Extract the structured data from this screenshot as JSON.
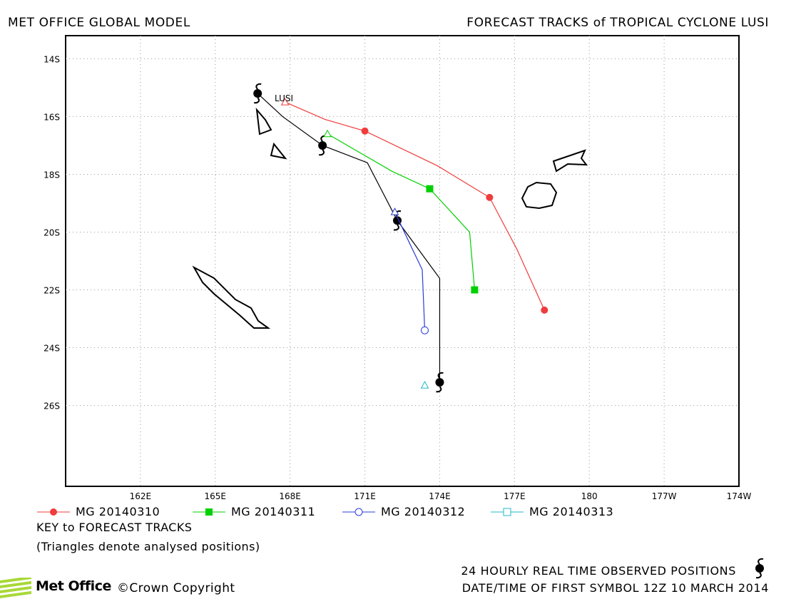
{
  "header": {
    "left": "MET OFFICE GLOBAL MODEL",
    "right": "FORECAST TRACKS of TROPICAL CYCLONE LUSI"
  },
  "map": {
    "lat_labels": [
      "14S",
      "16S",
      "18S",
      "20S",
      "22S",
      "24S",
      "26S"
    ],
    "lon_labels": [
      "162E",
      "165E",
      "168E",
      "171E",
      "174E",
      "177E",
      "180",
      "177W",
      "174W"
    ],
    "storm_label": "LUSI",
    "grid": "dotted"
  },
  "chart_data": {
    "type": "map-tracks",
    "lon_range": [
      159,
      186
    ],
    "lat_range": [
      -28.8,
      -13.2
    ],
    "observed_positions": [
      {
        "lon": 166.7,
        "lat": -15.2
      },
      {
        "lon": 169.3,
        "lat": -17.0
      },
      {
        "lon": 172.3,
        "lat": -19.6
      },
      {
        "lon": 174.0,
        "lat": -25.2
      }
    ],
    "observed_track": [
      {
        "lon": 166.7,
        "lat": -15.2
      },
      {
        "lon": 167.7,
        "lat": -16.0
      },
      {
        "lon": 169.3,
        "lat": -17.0
      },
      {
        "lon": 171.1,
        "lat": -17.6
      },
      {
        "lon": 172.3,
        "lat": -19.6
      },
      {
        "lon": 174.0,
        "lat": -21.6
      },
      {
        "lon": 174.0,
        "lat": -25.2
      }
    ],
    "series": [
      {
        "name": "MG 20140310",
        "color": "#f03c3c",
        "marker": "circle-filled",
        "analysed": {
          "lon": 167.8,
          "lat": -15.5
        },
        "track": [
          {
            "lon": 167.8,
            "lat": -15.5
          },
          {
            "lon": 169.4,
            "lat": -16.1
          },
          {
            "lon": 171.0,
            "lat": -16.5
          },
          {
            "lon": 173.9,
            "lat": -17.7
          },
          {
            "lon": 176.0,
            "lat": -18.8
          },
          {
            "lon": 177.1,
            "lat": -20.6
          },
          {
            "lon": 178.2,
            "lat": -22.7
          }
        ],
        "points": [
          {
            "lon": 171.0,
            "lat": -16.5
          },
          {
            "lon": 176.0,
            "lat": -18.8
          },
          {
            "lon": 178.2,
            "lat": -22.7
          }
        ]
      },
      {
        "name": "MG 20140311",
        "color": "#00d000",
        "marker": "square-filled",
        "analysed": {
          "lon": 169.5,
          "lat": -16.6
        },
        "track": [
          {
            "lon": 169.5,
            "lat": -16.6
          },
          {
            "lon": 172.1,
            "lat": -17.9
          },
          {
            "lon": 173.6,
            "lat": -18.5
          },
          {
            "lon": 175.2,
            "lat": -20.0
          },
          {
            "lon": 175.4,
            "lat": -22.0
          }
        ],
        "points": [
          {
            "lon": 173.6,
            "lat": -18.5
          },
          {
            "lon": 175.4,
            "lat": -22.0
          }
        ]
      },
      {
        "name": "MG 20140312",
        "color": "#2a3cd8",
        "marker": "circle-open",
        "analysed": {
          "lon": 172.2,
          "lat": -19.3
        },
        "track": [
          {
            "lon": 172.2,
            "lat": -19.3
          },
          {
            "lon": 172.8,
            "lat": -20.4
          },
          {
            "lon": 173.3,
            "lat": -21.3
          },
          {
            "lon": 173.4,
            "lat": -23.4
          }
        ],
        "points": [
          {
            "lon": 173.4,
            "lat": -23.4
          }
        ]
      },
      {
        "name": "MG 20140313",
        "color": "#20b8c8",
        "marker": "square-open",
        "analysed": {
          "lon": 173.4,
          "lat": -25.3
        },
        "track": [],
        "points": []
      }
    ]
  },
  "legend": {
    "items": [
      {
        "label": "MG 20140310",
        "color": "#f03c3c",
        "marker": "circle-filled"
      },
      {
        "label": "MG 20140311",
        "color": "#00d000",
        "marker": "square-filled"
      },
      {
        "label": "MG 20140312",
        "color": "#2a3cd8",
        "marker": "circle-open"
      },
      {
        "label": "MG 20140313",
        "color": "#20b8c8",
        "marker": "square-open"
      }
    ]
  },
  "notes": {
    "key": "KEY to FORECAST TRACKS",
    "triangles": "(Triangles denote analysed positions)"
  },
  "footer": {
    "observed": "24 HOURLY REAL TIME OBSERVED POSITIONS",
    "datetime": "DATE/TIME OF FIRST SYMBOL 12Z 10 MARCH 2014",
    "brand": "Met Office",
    "copyright": "Crown Copyright",
    "brand_color": "#a8d838"
  }
}
